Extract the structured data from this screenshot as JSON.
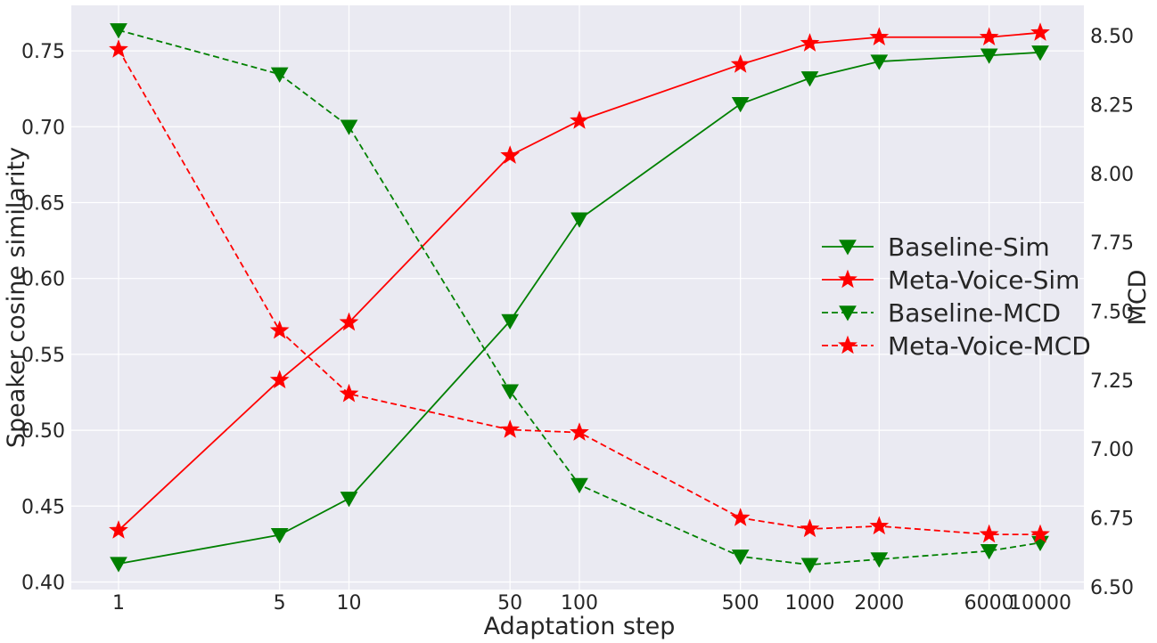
{
  "chart_data": {
    "type": "line",
    "xlabel": "Adaptation step",
    "ylabel": "Speaker cosine similarity",
    "y2label": "MCD",
    "x_scale": "log",
    "x": [
      1,
      5,
      10,
      50,
      100,
      500,
      1000,
      2000,
      6000,
      10000
    ],
    "x_tick_labels": [
      "1",
      "5",
      "10",
      "50",
      "100",
      "500",
      "1000",
      "2000",
      "6000",
      "10000"
    ],
    "ylim": [
      0.395,
      0.78
    ],
    "y_ticks": [
      "0.40",
      "0.45",
      "0.50",
      "0.55",
      "0.60",
      "0.65",
      "0.70",
      "0.75"
    ],
    "y2lim": [
      6.49,
      8.61
    ],
    "y2_ticks": [
      "6.50",
      "6.75",
      "7.00",
      "7.25",
      "7.50",
      "7.75",
      "8.00",
      "8.25",
      "8.50"
    ],
    "grid": true,
    "background": "#EAEAF2",
    "legend_position": "center-right",
    "series": [
      {
        "name": "Baseline-Sim",
        "axis": "left",
        "color": "#008000",
        "line": "solid",
        "marker": "triangle-down",
        "values": [
          0.412,
          0.431,
          0.455,
          0.572,
          0.639,
          0.715,
          0.732,
          0.743,
          0.747,
          0.749
        ]
      },
      {
        "name": "Meta-Voice-Sim",
        "axis": "left",
        "color": "#FF0000",
        "line": "solid",
        "marker": "star",
        "values": [
          0.434,
          0.533,
          0.571,
          0.681,
          0.704,
          0.741,
          0.755,
          0.759,
          0.759,
          0.762
        ]
      },
      {
        "name": "Baseline-MCD",
        "axis": "right",
        "color": "#008000",
        "line": "dashed",
        "marker": "triangle-down",
        "values": [
          8.52,
          8.36,
          8.17,
          7.21,
          6.87,
          6.61,
          6.58,
          6.6,
          6.63,
          6.66
        ]
      },
      {
        "name": "Meta-Voice-MCD",
        "axis": "right",
        "color": "#FF0000",
        "line": "dashed",
        "marker": "star",
        "values": [
          8.45,
          7.43,
          7.2,
          7.07,
          7.06,
          6.75,
          6.71,
          6.72,
          6.69,
          6.69
        ]
      }
    ]
  }
}
